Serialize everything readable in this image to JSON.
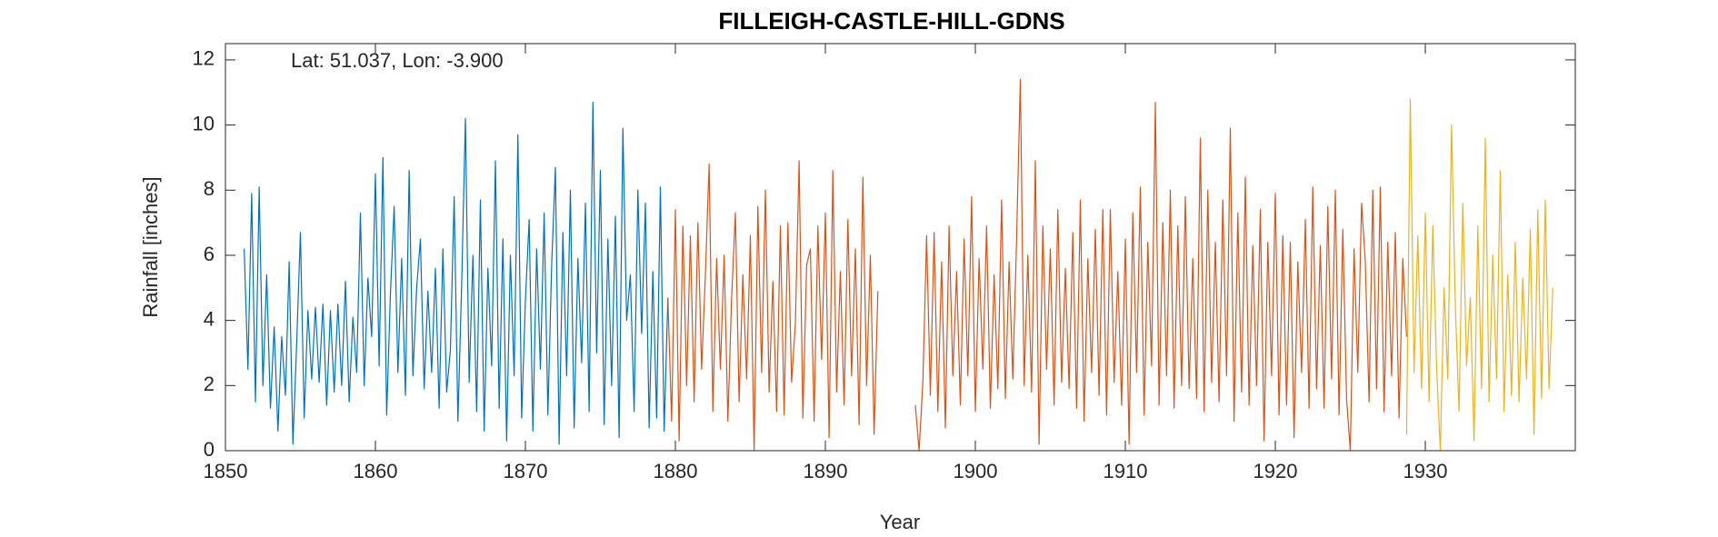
{
  "chart_data": {
    "type": "line",
    "title": "FILLEIGH-CASTLE-HILL-GDNS",
    "annotation": "Lat: 51.037, Lon: -3.900",
    "xlabel": "Year",
    "ylabel": "Rainfall [inches]",
    "xlim": [
      1850,
      1940
    ],
    "xticks": [
      1850,
      1860,
      1870,
      1880,
      1890,
      1900,
      1910,
      1920,
      1930
    ],
    "ylim": [
      0,
      12.5
    ],
    "yticks": [
      0,
      2,
      4,
      6,
      8,
      10,
      12
    ],
    "grid": false,
    "series": [
      {
        "color": "#0072bd",
        "x": [
          1851.25,
          1851.5,
          1851.75,
          1852,
          1852.25,
          1852.5,
          1852.75,
          1853,
          1853.25,
          1853.5,
          1853.75,
          1854,
          1854.25,
          1854.5,
          1854.75,
          1855,
          1855.25,
          1855.5,
          1855.75,
          1856,
          1856.25,
          1856.5,
          1856.75,
          1857,
          1857.25,
          1857.5,
          1857.75,
          1858,
          1858.25,
          1858.5,
          1858.75,
          1859,
          1859.25,
          1859.5,
          1859.75,
          1860,
          1860.25,
          1860.5,
          1860.75,
          1861,
          1861.25,
          1861.5,
          1861.75,
          1862,
          1862.25,
          1862.5,
          1862.75,
          1863,
          1863.25,
          1863.5,
          1863.75,
          1864,
          1864.25,
          1864.5,
          1864.75,
          1865,
          1865.25,
          1865.5,
          1865.75,
          1866,
          1866.25,
          1866.5,
          1866.75,
          1867,
          1867.25,
          1867.5,
          1867.75,
          1868,
          1868.25,
          1868.5,
          1868.75,
          1869,
          1869.25,
          1869.5,
          1869.75,
          1870,
          1870.25,
          1870.5,
          1870.75,
          1871,
          1871.25,
          1871.5,
          1871.75,
          1872,
          1872.25,
          1872.5,
          1872.75,
          1873,
          1873.25,
          1873.5,
          1873.75,
          1874,
          1874.25,
          1874.5,
          1874.75,
          1875,
          1875.25,
          1875.5,
          1875.75,
          1876,
          1876.25,
          1876.5,
          1876.75,
          1877,
          1877.25,
          1877.5,
          1877.75,
          1878,
          1878.25,
          1878.5,
          1878.75,
          1879,
          1879.25,
          1879.5
        ],
        "values": [
          6.2,
          2.5,
          7.9,
          1.5,
          8.1,
          2.0,
          5.4,
          1.3,
          3.8,
          0.6,
          3.5,
          1.7,
          5.8,
          0.2,
          3.3,
          6.7,
          1.0,
          4.3,
          2.2,
          4.4,
          2.1,
          4.5,
          1.4,
          4.3,
          1.8,
          4.5,
          2.0,
          5.2,
          1.5,
          4.1,
          2.4,
          7.3,
          2.0,
          5.3,
          3.5,
          8.5,
          2.6,
          9.0,
          1.1,
          4.8,
          7.5,
          2.4,
          5.9,
          1.7,
          8.6,
          2.3,
          5.0,
          6.5,
          1.9,
          4.9,
          2.4,
          5.6,
          1.3,
          6.2,
          1.8,
          3.1,
          7.8,
          0.9,
          5.1,
          10.2,
          2.1,
          6.0,
          1.2,
          7.7,
          0.6,
          5.6,
          2.6,
          8.9,
          1.3,
          6.5,
          0.3,
          6.0,
          2.3,
          9.7,
          1.0,
          4.6,
          7.1,
          0.6,
          6.2,
          2.5,
          7.3,
          1.1,
          5.7,
          8.7,
          0.2,
          6.7,
          2.3,
          8.0,
          0.7,
          5.9,
          2.7,
          7.6,
          1.2,
          10.7,
          3.0,
          8.6,
          0.8,
          6.5,
          2.0,
          7.2,
          0.4,
          9.9,
          4.0,
          5.4,
          1.2,
          8.0,
          3.6,
          7.6,
          0.7,
          5.5,
          1.0,
          8.1,
          0.6,
          4.7
        ]
      },
      {
        "color": "#d95319",
        "x": [
          1879.5,
          1879.75,
          1880,
          1880.25,
          1880.5,
          1880.75,
          1881,
          1881.25,
          1881.5,
          1881.75,
          1882,
          1882.25,
          1882.5,
          1882.75,
          1883,
          1883.25,
          1883.5,
          1883.75,
          1884,
          1884.25,
          1884.5,
          1884.75,
          1885,
          1885.25,
          1885.5,
          1885.75,
          1886,
          1886.25,
          1886.5,
          1886.75,
          1887,
          1887.25,
          1887.5,
          1887.75,
          1888,
          1888.25,
          1888.5,
          1888.75,
          1889,
          1889.25,
          1889.5,
          1889.75,
          1890,
          1890.25,
          1890.5,
          1890.75,
          1891,
          1891.25,
          1891.5,
          1891.75,
          1892,
          1892.25,
          1892.5,
          1892.75,
          1893,
          1893.25,
          1893.5,
          1894.75,
          1896,
          1896.25,
          1896.5,
          1896.75,
          1897,
          1897.25,
          1897.5,
          1897.75,
          1898,
          1898.25,
          1898.5,
          1898.75,
          1899,
          1899.25,
          1899.5,
          1899.75,
          1900,
          1900.25,
          1900.5,
          1900.75,
          1901,
          1901.25,
          1901.5,
          1901.75,
          1902,
          1902.25,
          1902.5,
          1902.75,
          1903,
          1903.25,
          1903.5,
          1903.75,
          1904,
          1904.25,
          1904.5,
          1904.75,
          1905,
          1905.25,
          1905.5,
          1905.75,
          1906,
          1906.25,
          1906.5,
          1906.75,
          1907,
          1907.25,
          1907.5,
          1907.75,
          1908,
          1908.25,
          1908.5,
          1908.75,
          1909,
          1909.25,
          1909.5,
          1909.75,
          1910,
          1910.25,
          1910.5,
          1910.75,
          1911,
          1911.25,
          1911.5,
          1911.75,
          1912,
          1912.25,
          1912.5,
          1912.75,
          1913,
          1913.25,
          1913.5,
          1913.75,
          1914,
          1914.25,
          1914.5,
          1914.75,
          1915,
          1915.25,
          1915.5,
          1915.75,
          1916,
          1916.25,
          1916.5,
          1916.75,
          1917,
          1917.25,
          1917.5,
          1917.75,
          1918,
          1918.25,
          1918.5,
          1918.75,
          1919,
          1919.25,
          1919.5,
          1919.75,
          1920,
          1920.25,
          1920.5,
          1920.75,
          1921,
          1921.25,
          1921.5,
          1921.75,
          1922,
          1922.25,
          1922.5,
          1922.75,
          1923,
          1923.25,
          1923.5,
          1923.75,
          1924,
          1924.25,
          1924.5,
          1924.75,
          1925,
          1925.25,
          1925.5,
          1925.75,
          1926,
          1926.25,
          1926.5,
          1926.75,
          1927,
          1927.25,
          1927.5,
          1927.75,
          1928,
          1928.25,
          1928.5,
          1928.75
        ],
        "values": [
          4.7,
          0.9,
          7.4,
          0.3,
          6.9,
          2.0,
          6.6,
          1.5,
          7.0,
          2.5,
          5.4,
          8.8,
          1.2,
          5.9,
          2.5,
          6.0,
          0.9,
          4.7,
          7.3,
          1.5,
          5.4,
          2.2,
          6.6,
          0.0,
          7.5,
          2.4,
          8.0,
          1.8,
          5.2,
          1.2,
          6.9,
          1.1,
          7.0,
          2.1,
          3.9,
          8.9,
          1.0,
          5.7,
          6.2,
          0.9,
          6.9,
          2.8,
          7.3,
          0.4,
          8.6,
          1.8,
          5.5,
          1.4,
          7.1,
          2.3,
          6.2,
          0.8,
          8.4,
          2.0,
          6.0,
          0.5,
          4.9,
          null,
          1.4,
          0.0,
          2.1,
          6.6,
          1.7,
          6.7,
          1.2,
          5.8,
          0.7,
          6.9,
          2.3,
          5.5,
          1.4,
          6.5,
          2.3,
          7.8,
          1.2,
          5.9,
          2.5,
          6.9,
          1.3,
          5.4,
          1.9,
          7.7,
          1.6,
          5.8,
          2.2,
          6.5,
          11.4,
          2.0,
          6.0,
          1.8,
          8.9,
          0.2,
          6.9,
          2.5,
          6.2,
          1.4,
          7.4,
          2.1,
          5.6,
          1.9,
          6.7,
          1.3,
          7.7,
          0.9,
          5.9,
          2.4,
          6.8,
          1.7,
          7.4,
          1.1,
          7.4,
          2.1,
          5.5,
          1.4,
          6.5,
          0.2,
          7.3,
          2.4,
          8.1,
          1.1,
          6.4,
          2.6,
          10.7,
          1.4,
          7.0,
          2.3,
          8.0,
          1.3,
          6.9,
          2.0,
          7.8,
          1.9,
          5.9,
          1.6,
          9.6,
          1.2,
          8.0,
          2.1,
          6.4,
          1.5,
          7.7,
          2.3,
          9.9,
          0.9,
          7.3,
          1.8,
          8.4,
          1.4,
          6.3,
          2.0,
          7.4,
          0.3,
          6.4,
          2.3,
          7.9,
          1.1,
          6.6,
          1.4,
          6.4,
          0.4,
          5.8,
          2.4,
          7.1,
          1.3,
          8.1,
          1.9,
          6.3,
          1.3,
          7.5,
          2.2,
          8.0,
          1.1,
          6.8,
          1.6,
          0.0,
          6.2,
          2.4,
          7.6,
          5.8,
          1.5,
          8.0,
          1.9,
          8.1,
          1.2,
          6.4,
          2.3,
          6.7,
          1.0,
          5.9,
          3.5
        ]
      },
      {
        "color": "#edb120",
        "x": [
          1928.75,
          1929,
          1929.25,
          1929.5,
          1929.75,
          1930,
          1930.25,
          1930.5,
          1930.75,
          1931,
          1931.25,
          1931.5,
          1931.75,
          1932,
          1932.25,
          1932.5,
          1932.75,
          1933,
          1933.25,
          1933.5,
          1933.75,
          1934,
          1934.25,
          1934.5,
          1934.75,
          1935,
          1935.25,
          1935.5,
          1935.75,
          1936,
          1936.25,
          1936.5,
          1936.75,
          1937,
          1937.25,
          1937.5,
          1937.75,
          1938,
          1938.25,
          1938.5
        ],
        "values": [
          0.5,
          10.8,
          2.4,
          6.6,
          1.9,
          7.3,
          1.5,
          6.9,
          2.6,
          0.0,
          5.0,
          2.2,
          10.0,
          4.5,
          1.2,
          7.6,
          2.6,
          4.7,
          0.3,
          6.9,
          1.9,
          9.6,
          1.5,
          6.0,
          2.2,
          8.6,
          1.2,
          5.4,
          1.7,
          6.4,
          1.5,
          5.3,
          2.2,
          6.8,
          0.5,
          7.4,
          1.6,
          7.7,
          1.9,
          5.0
        ]
      }
    ]
  }
}
